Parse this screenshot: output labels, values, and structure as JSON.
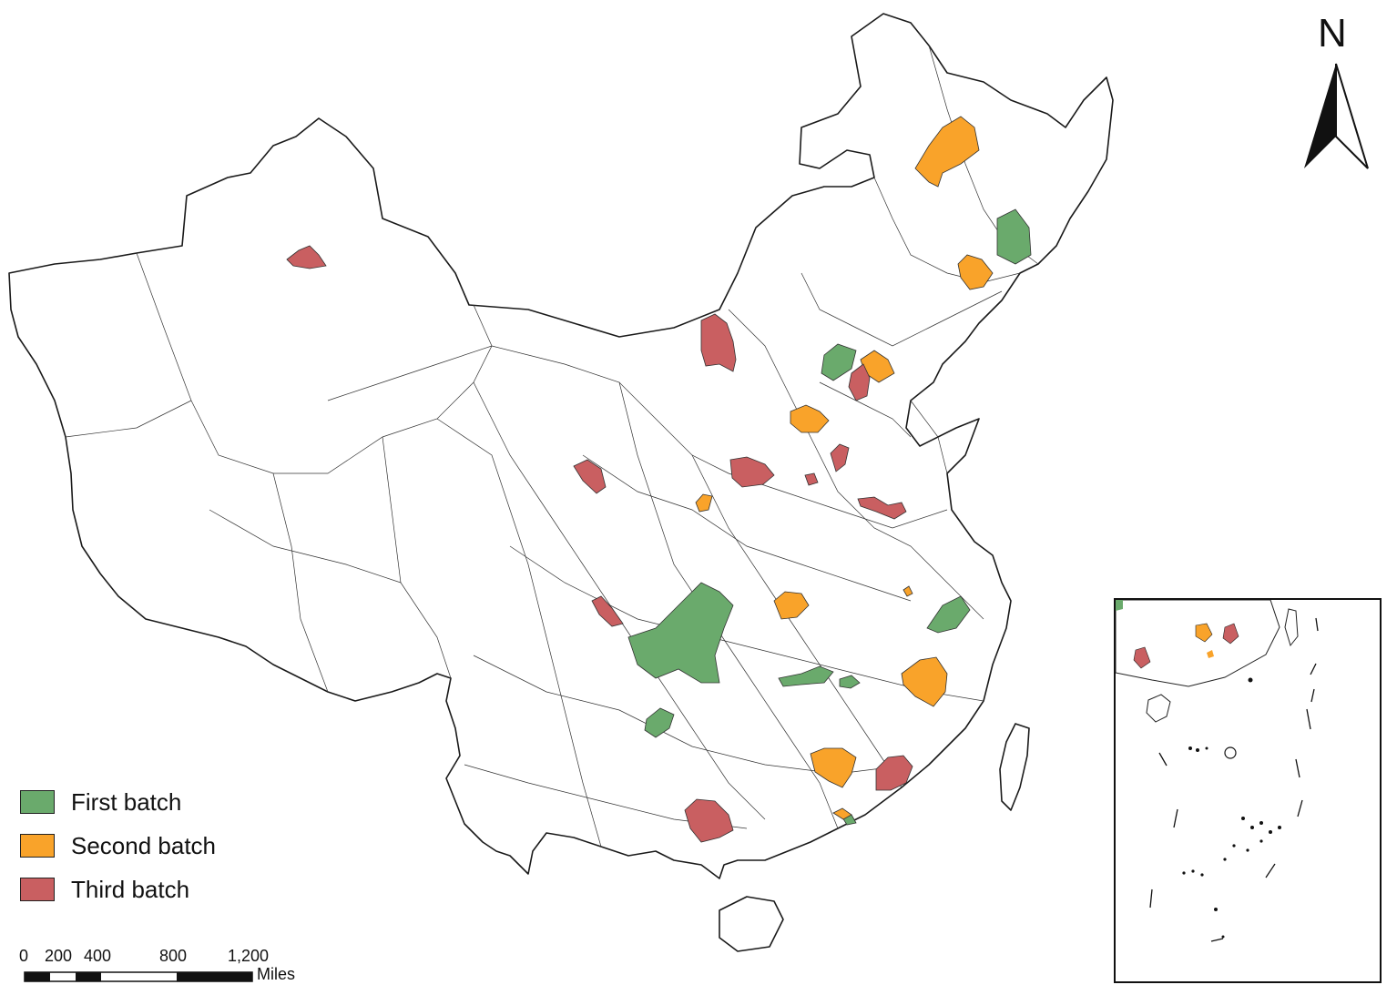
{
  "legend": {
    "first": {
      "label": "First batch",
      "color": "#6aaa6c"
    },
    "second": {
      "label": "Second batch",
      "color": "#f9a32a"
    },
    "third": {
      "label": "Third batch",
      "color": "#c95f61"
    }
  },
  "scale_bar": {
    "labels": [
      "0",
      "200",
      "400",
      "800",
      "1,200"
    ],
    "unit": "Miles"
  },
  "north_arrow": {
    "label": "N"
  },
  "colors": {
    "outline": "#1a1a1a",
    "background": "#ffffff"
  }
}
